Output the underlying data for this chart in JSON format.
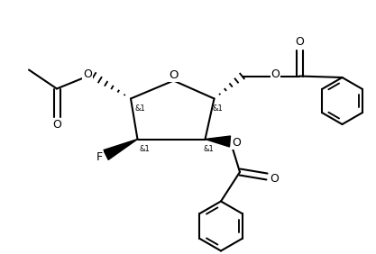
{
  "bg_color": "#ffffff",
  "line_color": "#000000",
  "line_width": 1.5,
  "font_size": 8.5,
  "fig_width": 4.17,
  "fig_height": 2.82,
  "dpi": 100,
  "xlim": [
    0,
    8.34
  ],
  "ylim": [
    0,
    5.64
  ]
}
